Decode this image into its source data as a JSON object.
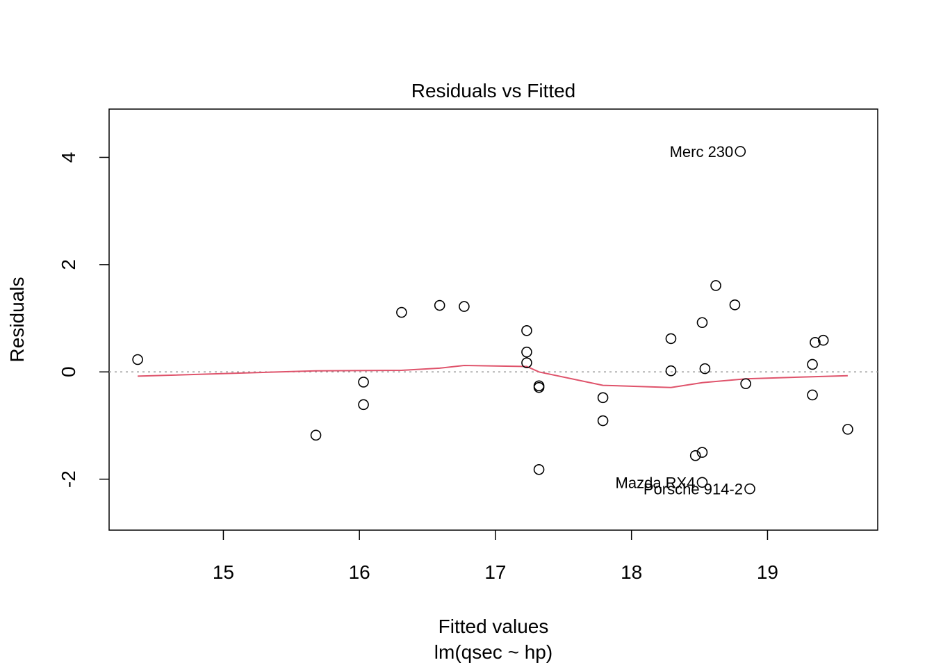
{
  "chart_data": {
    "type": "scatter",
    "title": "Residuals vs Fitted",
    "xlabel": "Fitted values",
    "xsublabel": "lm(qsec ~ hp)",
    "ylabel": "Residuals",
    "xlim": [
      14.16,
      19.81
    ],
    "ylim": [
      -2.95,
      4.9
    ],
    "xticks": [
      15,
      16,
      17,
      18,
      19
    ],
    "yticks": [
      -2,
      0,
      2,
      4
    ],
    "grid": false,
    "zero_line": true,
    "colors": {
      "points": "#000000",
      "smooth": "#DF536B",
      "zero_line": "#999999"
    },
    "points": [
      {
        "x": 14.37,
        "y": 0.23
      },
      {
        "x": 15.68,
        "y": -1.18
      },
      {
        "x": 16.03,
        "y": -0.19
      },
      {
        "x": 16.03,
        "y": -0.61
      },
      {
        "x": 16.31,
        "y": 1.11
      },
      {
        "x": 16.59,
        "y": 1.24
      },
      {
        "x": 16.77,
        "y": 1.22
      },
      {
        "x": 17.23,
        "y": 0.77
      },
      {
        "x": 17.23,
        "y": 0.37
      },
      {
        "x": 17.23,
        "y": 0.17
      },
      {
        "x": 17.32,
        "y": -0.26
      },
      {
        "x": 17.32,
        "y": -0.29
      },
      {
        "x": 17.32,
        "y": -1.82
      },
      {
        "x": 17.79,
        "y": -0.48
      },
      {
        "x": 17.79,
        "y": -0.91
      },
      {
        "x": 18.29,
        "y": 0.62
      },
      {
        "x": 18.29,
        "y": 0.02
      },
      {
        "x": 18.47,
        "y": -1.56
      },
      {
        "x": 18.52,
        "y": 0.92
      },
      {
        "x": 18.52,
        "y": -1.5
      },
      {
        "x": 18.52,
        "y": -2.06,
        "label": "Mazda RX4"
      },
      {
        "x": 18.54,
        "y": 0.06
      },
      {
        "x": 18.62,
        "y": 1.61
      },
      {
        "x": 18.76,
        "y": 1.25
      },
      {
        "x": 18.8,
        "y": 4.11,
        "label": "Merc 230"
      },
      {
        "x": 18.84,
        "y": -0.22
      },
      {
        "x": 18.87,
        "y": -2.18,
        "label": "Porsche 914-2"
      },
      {
        "x": 19.33,
        "y": 0.14
      },
      {
        "x": 19.33,
        "y": -0.43
      },
      {
        "x": 19.35,
        "y": 0.55
      },
      {
        "x": 19.41,
        "y": 0.59
      },
      {
        "x": 19.59,
        "y": -1.07
      }
    ],
    "smooth": {
      "x": [
        14.37,
        15.68,
        16.31,
        16.59,
        16.77,
        17.23,
        17.32,
        17.79,
        18.29,
        18.52,
        18.84,
        19.33,
        19.59
      ],
      "y": [
        -0.08,
        0.02,
        0.03,
        0.07,
        0.12,
        0.1,
        0.0,
        -0.25,
        -0.29,
        -0.2,
        -0.13,
        -0.09,
        -0.07
      ]
    }
  }
}
